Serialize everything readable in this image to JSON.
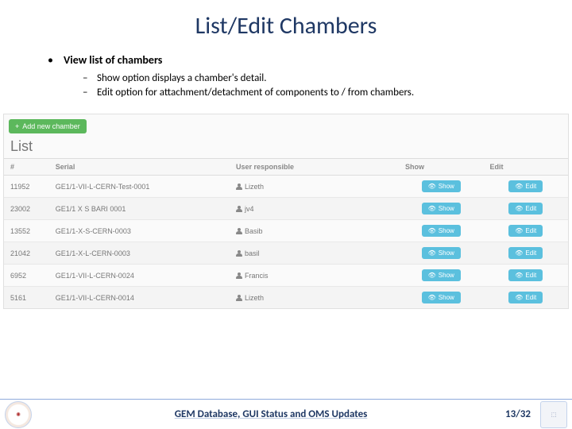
{
  "title": "List/Edit Chambers",
  "bullets": {
    "main": "View list of chambers",
    "sub1": "Show option displays a chamber's detail.",
    "sub2": "Edit option for attachment/detachment of components to / from chambers."
  },
  "screenshot": {
    "add_button": "Add new chamber",
    "list_heading": "List",
    "columns": {
      "id": "#",
      "serial": "Serial",
      "user": "User responsible",
      "show": "Show",
      "edit": "Edit"
    },
    "show_btn": "Show",
    "edit_btn": "Edit",
    "rows": [
      {
        "id": "11952",
        "serial": "GE1/1-VII-L-CERN-Test-0001",
        "user": "Lizeth"
      },
      {
        "id": "23002",
        "serial": "GE1/1 X S BARI 0001",
        "user": "jv4"
      },
      {
        "id": "13552",
        "serial": "GE1/1-X-S-CERN-0003",
        "user": "Basib"
      },
      {
        "id": "21042",
        "serial": "GE1/1-X-L-CERN-0003",
        "user": "basil"
      },
      {
        "id": "6952",
        "serial": "GE1/1-VII-L-CERN-0024",
        "user": "Francis"
      },
      {
        "id": "5161",
        "serial": "GE1/1-VII-L-CERN-0014",
        "user": "Lizeth"
      }
    ]
  },
  "footer": {
    "title": "GEM Database, GUI Status and OMS Updates",
    "page": "13/32"
  },
  "colors": {
    "title": "#1f3864",
    "btn_add": "#5cb85c",
    "btn_info": "#5bc0de",
    "border": "#e0e0e0"
  }
}
